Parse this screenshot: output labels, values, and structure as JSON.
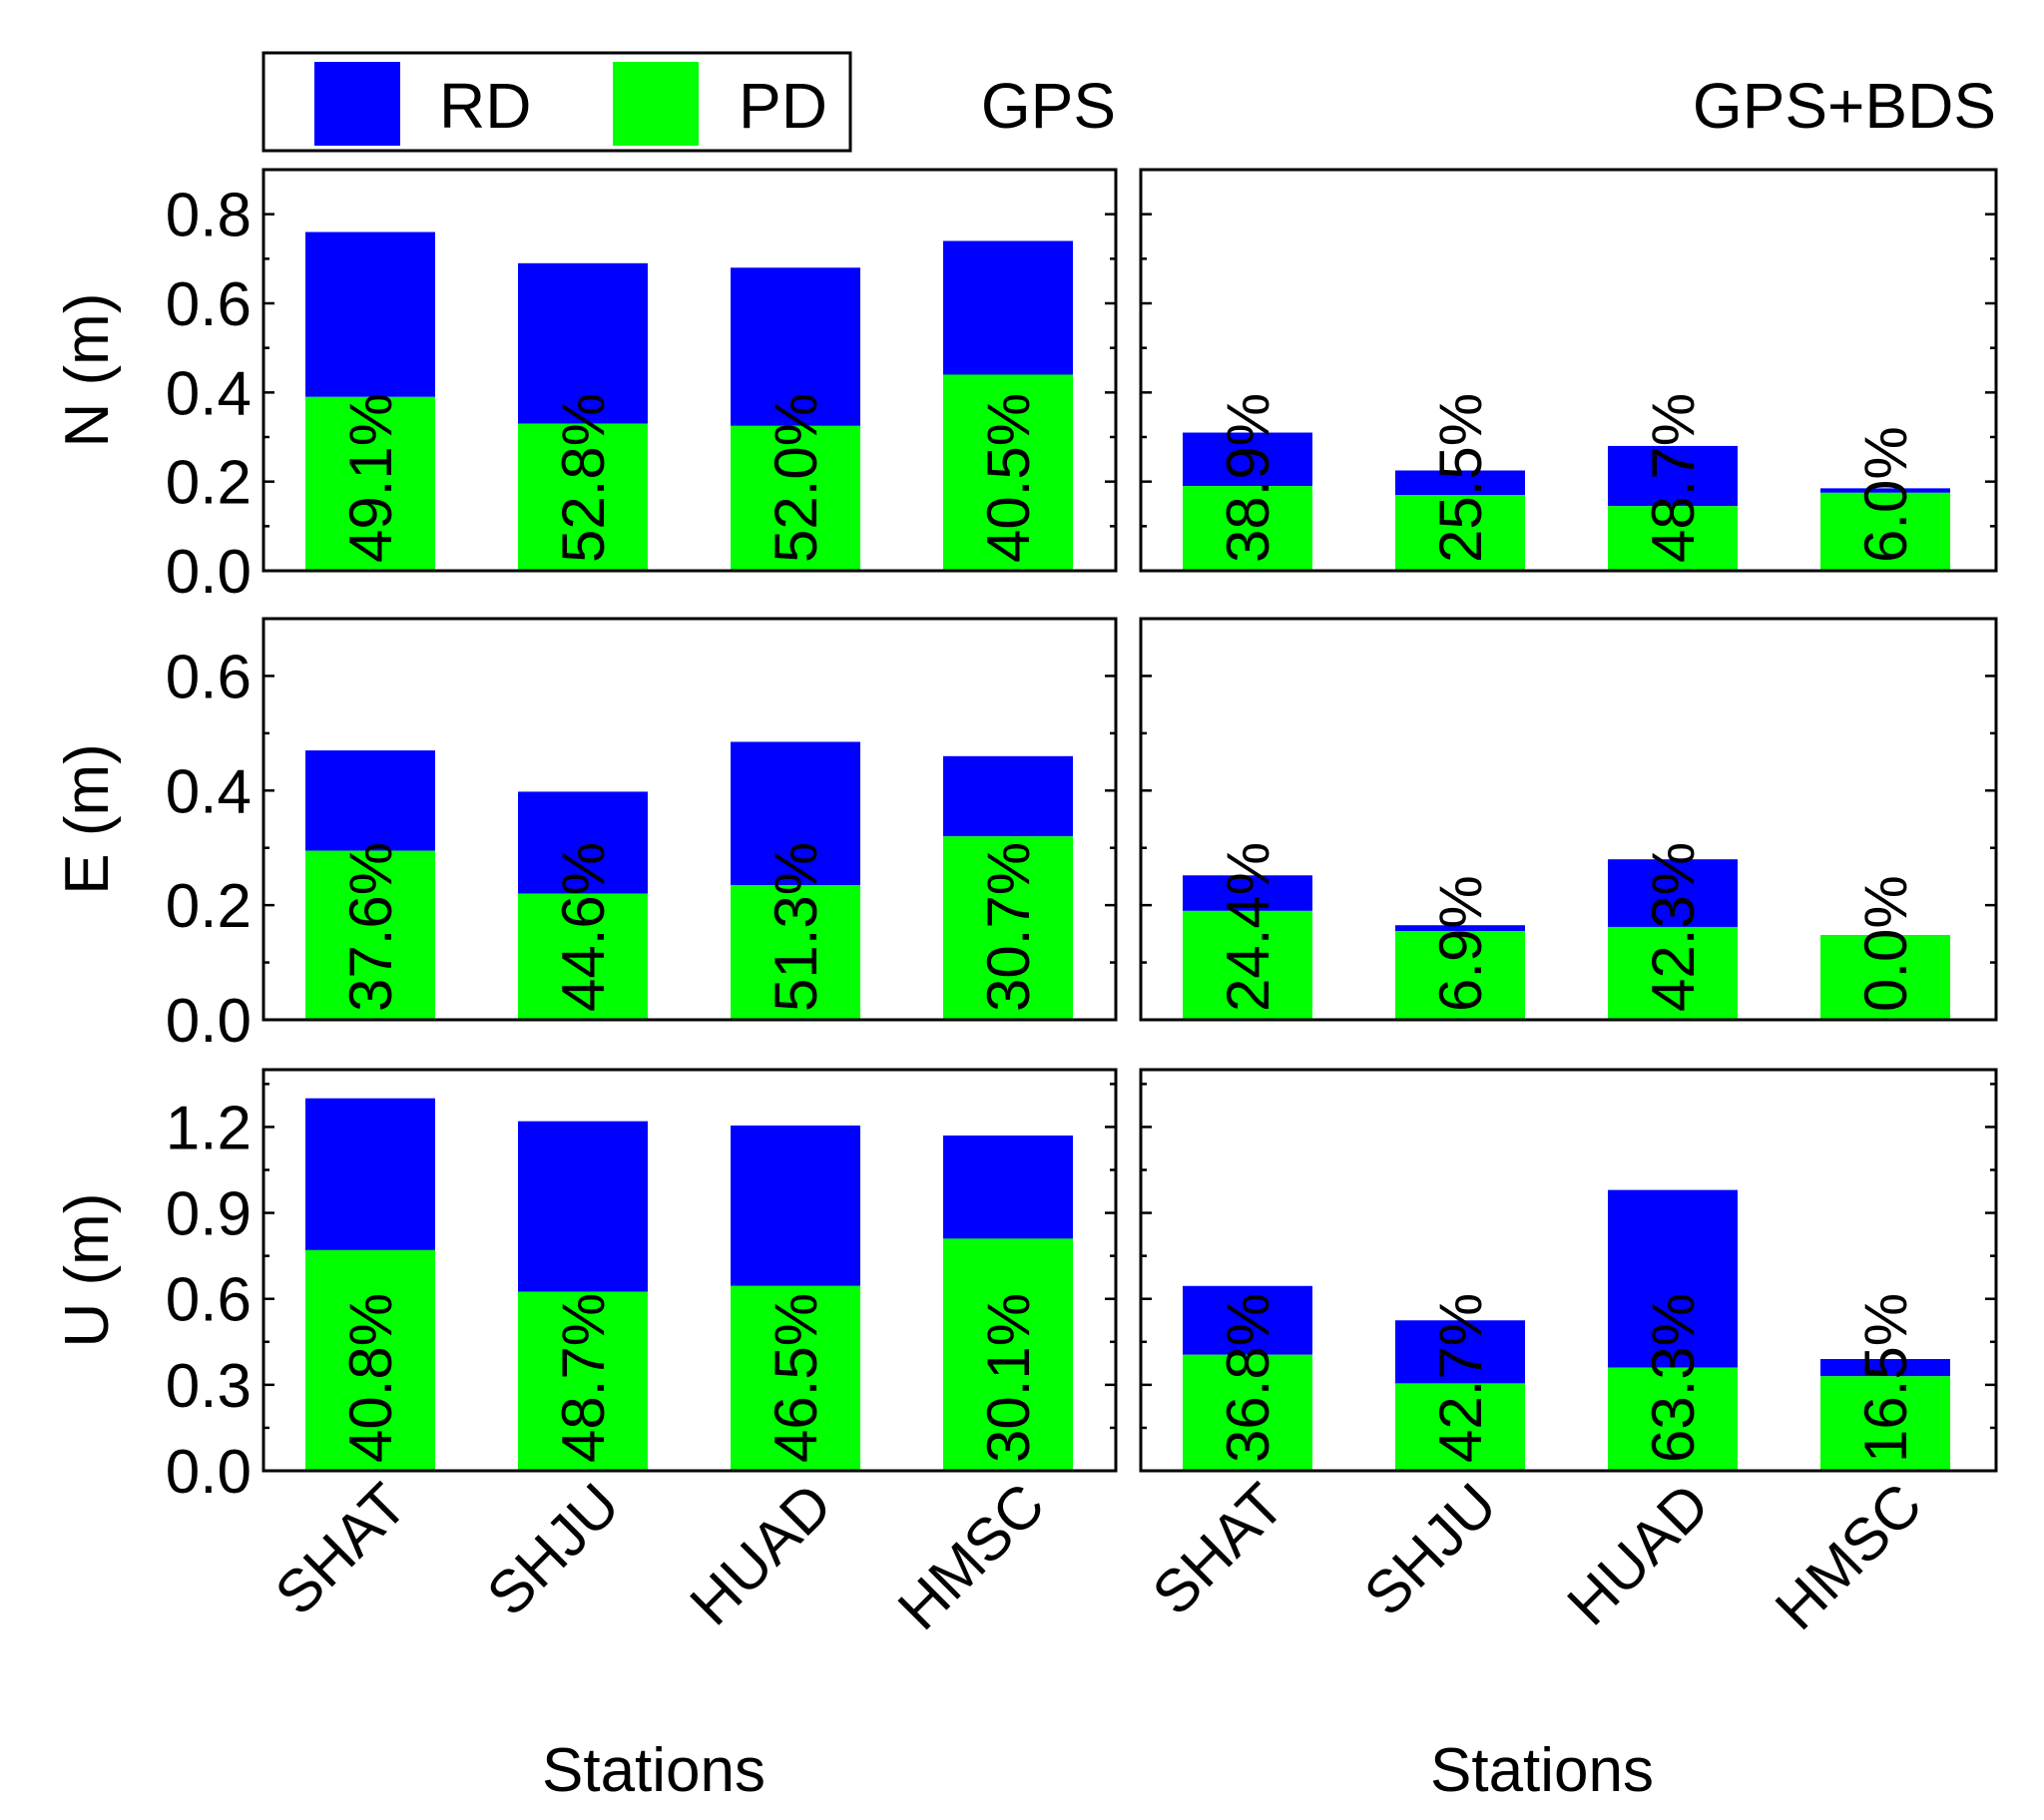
{
  "legend": {
    "items": [
      {
        "label": "RD",
        "color": "#0000ff"
      },
      {
        "label": "PD",
        "color": "#00ff00"
      }
    ]
  },
  "xlabel": "Stations",
  "chart_data": [
    {
      "type": "bar",
      "stacked": true,
      "title": "GPS",
      "ylabel": "N (m)",
      "ylim": [
        0,
        0.9
      ],
      "yticks": [
        0.0,
        0.2,
        0.4,
        0.6,
        0.8
      ],
      "tick_labels": [
        "0.0",
        "0.2",
        "0.4",
        "0.6",
        "0.8"
      ],
      "categories": [
        "SHAT",
        "SHJU",
        "HUAD",
        "HMSC"
      ],
      "pd": [
        0.39,
        0.33,
        0.325,
        0.44
      ],
      "total": [
        0.76,
        0.69,
        0.68,
        0.74
      ],
      "annotations": [
        "49.1%",
        "52.8%",
        "52.0%",
        "40.5%"
      ]
    },
    {
      "type": "bar",
      "stacked": true,
      "title": "GPS+BDS",
      "ylabel": "",
      "ylim": [
        0,
        0.9
      ],
      "yticks": [
        0.0,
        0.2,
        0.4,
        0.6,
        0.8
      ],
      "tick_labels": [],
      "categories": [
        "SHAT",
        "SHJU",
        "HUAD",
        "HMSC"
      ],
      "pd": [
        0.19,
        0.17,
        0.145,
        0.175
      ],
      "total": [
        0.31,
        0.225,
        0.28,
        0.185
      ],
      "annotations": [
        "38.9%",
        "25.5%",
        "48.7%",
        "6.0%"
      ]
    },
    {
      "type": "bar",
      "stacked": true,
      "title": "",
      "ylabel": "E (m)",
      "ylim": [
        0,
        0.7
      ],
      "yticks": [
        0.0,
        0.2,
        0.4,
        0.6
      ],
      "tick_labels": [
        "0.0",
        "0.2",
        "0.4",
        "0.6"
      ],
      "categories": [
        "SHAT",
        "SHJU",
        "HUAD",
        "HMSC"
      ],
      "pd": [
        0.295,
        0.22,
        0.235,
        0.32
      ],
      "total": [
        0.47,
        0.398,
        0.485,
        0.46
      ],
      "annotations": [
        "37.6%",
        "44.6%",
        "51.3%",
        "30.7%"
      ]
    },
    {
      "type": "bar",
      "stacked": true,
      "title": "",
      "ylabel": "",
      "ylim": [
        0,
        0.7
      ],
      "yticks": [
        0.0,
        0.2,
        0.4,
        0.6
      ],
      "tick_labels": [],
      "categories": [
        "SHAT",
        "SHJU",
        "HUAD",
        "HMSC"
      ],
      "pd": [
        0.19,
        0.155,
        0.162,
        0.148
      ],
      "total": [
        0.252,
        0.165,
        0.28,
        0.148
      ],
      "annotations": [
        "24.4%",
        "6.9%",
        "42.3%",
        "0.0%"
      ]
    },
    {
      "type": "bar",
      "stacked": true,
      "title": "",
      "ylabel": "U (m)",
      "ylim": [
        0,
        1.4
      ],
      "yticks": [
        0.0,
        0.3,
        0.6,
        0.9,
        1.2
      ],
      "tick_labels": [
        "0.0",
        "0.3",
        "0.6",
        "0.9",
        "1.2"
      ],
      "categories": [
        "SHAT",
        "SHJU",
        "HUAD",
        "HMSC"
      ],
      "pd": [
        0.77,
        0.625,
        0.645,
        0.81
      ],
      "total": [
        1.3,
        1.22,
        1.205,
        1.17
      ],
      "annotations": [
        "40.8%",
        "48.7%",
        "46.5%",
        "30.1%"
      ]
    },
    {
      "type": "bar",
      "stacked": true,
      "title": "",
      "ylabel": "",
      "ylim": [
        0,
        1.4
      ],
      "yticks": [
        0.0,
        0.3,
        0.6,
        0.9,
        1.2
      ],
      "tick_labels": [],
      "categories": [
        "SHAT",
        "SHJU",
        "HUAD",
        "HMSC"
      ],
      "pd": [
        0.405,
        0.305,
        0.36,
        0.33
      ],
      "total": [
        0.645,
        0.525,
        0.98,
        0.39
      ],
      "annotations": [
        "36.8%",
        "42.7%",
        "63.3%",
        "16.5%"
      ]
    }
  ]
}
